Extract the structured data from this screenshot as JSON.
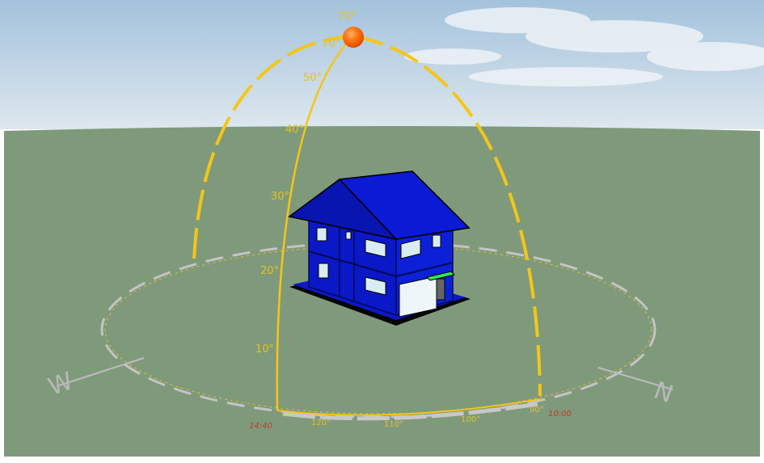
{
  "scene": {
    "description_free": true,
    "colors": {
      "sky_top": "#a9c6df",
      "sky_bottom": "#dbe6ee",
      "ground": "#7f9a7b",
      "sun_path": "#f5c518",
      "horizon_ring": "#c9c9c9",
      "house_blue": "#0a18c8",
      "house_dark": "#050f7a",
      "sun": "#ff6a00"
    }
  },
  "sun": {
    "icon": "sun-icon",
    "elevation_deg": 70
  },
  "elevation_labels": [
    "10°",
    "20°",
    "30°",
    "40°",
    "50°",
    "70°",
    "70°"
  ],
  "azimuth_labels": [
    "120°",
    "110°",
    "100°",
    "90°"
  ],
  "time_labels": [
    "14:40",
    "10:00"
  ],
  "compass": {
    "west": "W",
    "east": "N"
  },
  "house": {
    "icon": "house-model-icon"
  }
}
